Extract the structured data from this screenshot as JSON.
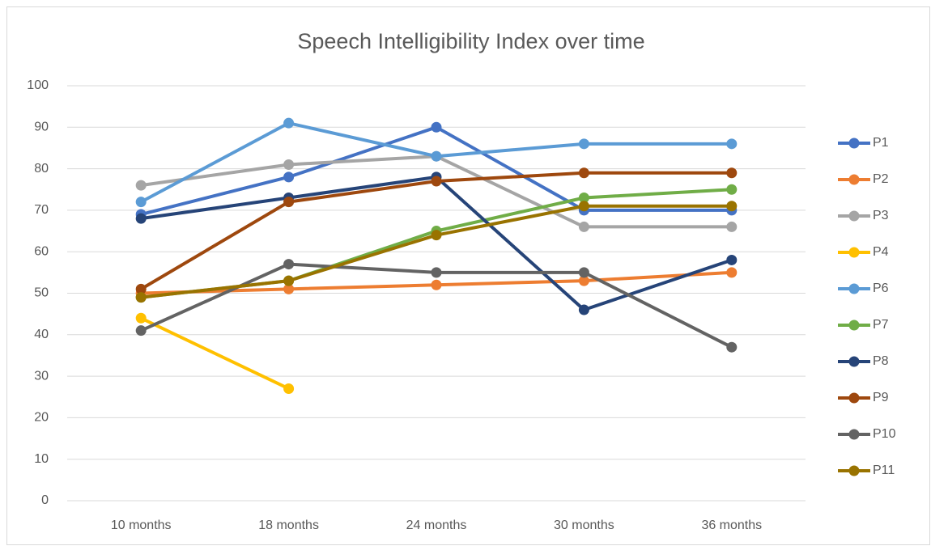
{
  "chart_data": {
    "type": "line",
    "title": "Speech Intelligibility Index over time",
    "categories": [
      "10 months",
      "18 months",
      "24 months",
      "30 months",
      "36 months"
    ],
    "series": [
      {
        "name": "P1",
        "color": "#4472c4",
        "values": [
          69,
          78,
          90,
          70,
          70
        ]
      },
      {
        "name": "P2",
        "color": "#ed7d31",
        "values": [
          50,
          51,
          52,
          53,
          55
        ]
      },
      {
        "name": "P3",
        "color": "#a5a5a5",
        "values": [
          76,
          81,
          83,
          66,
          66
        ]
      },
      {
        "name": "P4",
        "color": "#ffc000",
        "values": [
          44,
          27,
          null,
          null,
          null
        ]
      },
      {
        "name": "P6",
        "color": "#5b9bd5",
        "values": [
          72,
          91,
          83,
          86,
          86
        ]
      },
      {
        "name": "P7",
        "color": "#70ad47",
        "values": [
          49,
          53,
          65,
          73,
          75
        ]
      },
      {
        "name": "P8",
        "color": "#264478",
        "values": [
          68,
          73,
          78,
          46,
          58
        ]
      },
      {
        "name": "P9",
        "color": "#9e480e",
        "values": [
          51,
          72,
          77,
          79,
          79
        ]
      },
      {
        "name": "P10",
        "color": "#636363",
        "values": [
          41,
          57,
          55,
          55,
          37
        ]
      },
      {
        "name": "P11",
        "color": "#997300",
        "values": [
          49,
          53,
          64,
          71,
          71
        ]
      }
    ],
    "ylim": [
      0,
      100
    ],
    "yticks": [
      0,
      10,
      20,
      30,
      40,
      50,
      60,
      70,
      80,
      90,
      100
    ],
    "grid": true,
    "legend": "right"
  }
}
